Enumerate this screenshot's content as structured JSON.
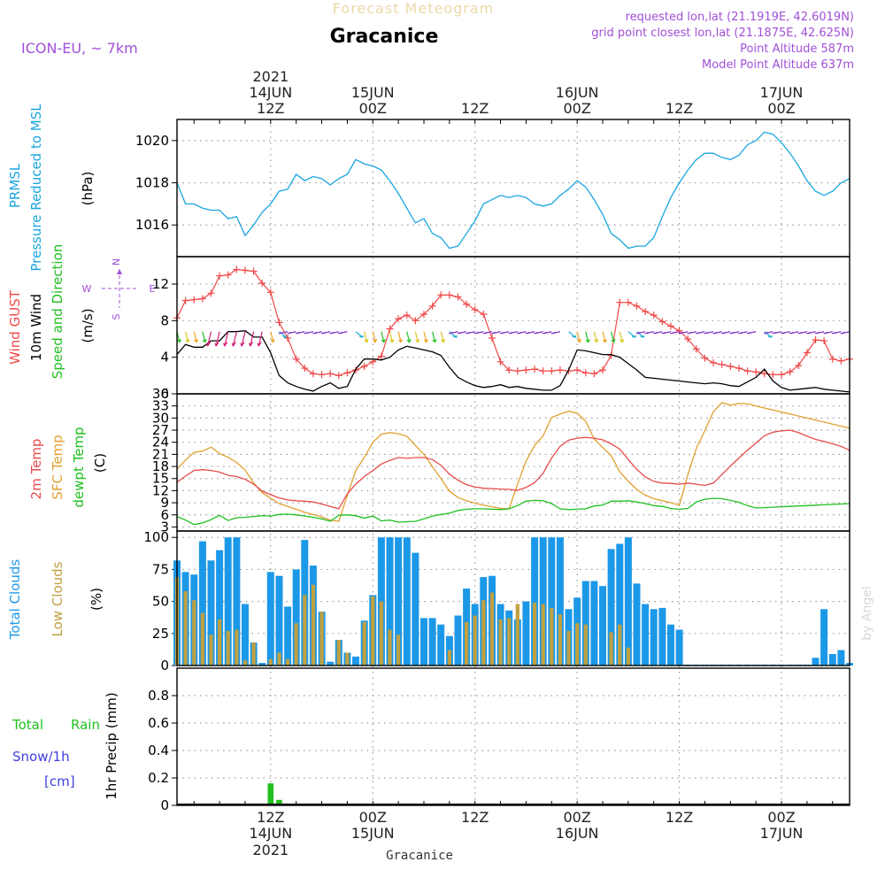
{
  "header": {
    "top_title": "Forecast Meteogram",
    "location": "Gracanice",
    "model": "ICON-EU, ~ 7km",
    "requested": "requested lon,lat (21.1919E, 42.6019N)",
    "gridpoint": "grid point closest lon,lat (21.1875E, 42.625N)",
    "point_alt": "Point Altitude 587m",
    "model_alt": "Model Point Altitude 637m",
    "watermark": "by Angel"
  },
  "time_axis": {
    "year": "2021",
    "top_labels": [
      {
        "t": 12,
        "line1": "14JUN",
        "line2": "12Z"
      },
      {
        "t": 24,
        "line1": "15JUN",
        "line2": "00Z"
      },
      {
        "t": 36,
        "line1": "",
        "line2": "12Z"
      },
      {
        "t": 48,
        "line1": "16JUN",
        "line2": "00Z"
      },
      {
        "t": 60,
        "line1": "",
        "line2": "12Z"
      },
      {
        "t": 72,
        "line1": "17JUN",
        "line2": "00Z"
      }
    ],
    "bottom_labels": [
      {
        "t": 12,
        "line1": "12Z",
        "line2": "14JUN"
      },
      {
        "t": 24,
        "line1": "00Z",
        "line2": "15JUN"
      },
      {
        "t": 36,
        "line1": "12Z",
        "line2": ""
      },
      {
        "t": 48,
        "line1": "00Z",
        "line2": "16JUN"
      },
      {
        "t": 60,
        "line1": "12Z",
        "line2": ""
      },
      {
        "t": 72,
        "line1": "00Z",
        "line2": "17JUN"
      }
    ],
    "bottom_year": "2021",
    "bottom_location": "Gracanice"
  },
  "panels": {
    "pressure": {
      "labels": [
        "PRMSL",
        "Pressure Reduced to MSL"
      ],
      "unit": "(hPa)"
    },
    "wind": {
      "labels": [
        "Wind GUST",
        "10m Wind",
        "Speed and Direction"
      ],
      "unit": "(m/s)",
      "compass": {
        "n": "N",
        "s": "S",
        "w": "W",
        "e": "E"
      }
    },
    "temp": {
      "labels": [
        "2m Temp",
        "SFC Temp",
        "dewpt Temp"
      ],
      "unit": "(C)"
    },
    "clouds": {
      "labels": [
        "Total Clouds",
        "Low Clouds"
      ],
      "unit": "(%)"
    },
    "precip": {
      "labels": [
        "Total",
        "Rain",
        "Snow/1h",
        "[cm]"
      ],
      "unit": "1hr Precip (mm)"
    }
  },
  "colors": {
    "pressure": "#19a6e0",
    "gust": "#f04848",
    "wind": "#000000",
    "t2m": "#e84a4a",
    "sfc": "#e0a030",
    "dew": "#20c020",
    "total_cloud": "#1c98e8",
    "low_cloud": "#c0a040",
    "rain": "#22c022",
    "snow": "#4040e0",
    "header_title": "#ead9a8",
    "purple": "#a050d8"
  },
  "chart_data": [
    {
      "type": "line",
      "name": "pressure",
      "xlabel": "",
      "ylabel": "(hPa)",
      "ylim": [
        1014.5,
        1021
      ],
      "yticks": [
        1016,
        1018,
        1020
      ],
      "x": [
        1,
        2,
        3,
        4,
        5,
        6,
        7,
        8,
        9,
        10,
        11,
        12,
        13,
        14,
        15,
        16,
        17,
        18,
        19,
        20,
        21,
        22,
        23,
        24,
        25,
        26,
        27,
        28,
        29,
        30,
        31,
        32,
        33,
        34,
        35,
        36,
        37,
        38,
        39,
        40,
        41,
        42,
        43,
        44,
        45,
        46,
        47,
        48,
        49,
        50,
        51,
        52,
        53,
        54,
        55,
        56,
        57,
        58,
        59,
        60,
        61,
        62,
        63,
        64,
        65,
        66,
        67,
        68,
        69,
        70,
        71,
        72,
        73,
        74,
        75,
        76,
        77,
        78,
        79,
        80
      ],
      "series": [
        {
          "values": [
            1018.0,
            1017.0,
            1017.0,
            1016.8,
            1016.7,
            1016.7,
            1016.3,
            1016.4,
            1015.5,
            1016.0,
            1016.6,
            1017.0,
            1017.6,
            1017.7,
            1018.4,
            1018.1,
            1018.3,
            1018.2,
            1017.9,
            1018.2,
            1018.4,
            1019.1,
            1018.9,
            1018.8,
            1018.6,
            1018.1,
            1017.5,
            1016.8,
            1016.1,
            1016.3,
            1015.6,
            1015.4,
            1014.9,
            1015.0,
            1015.6,
            1016.2,
            1017.0,
            1017.2,
            1017.4,
            1017.3,
            1017.4,
            1017.3,
            1017.0,
            1016.9,
            1017.0,
            1017.4,
            1017.7,
            1018.1,
            1017.8,
            1017.2,
            1016.5,
            1015.6,
            1015.3,
            1014.9,
            1015.0,
            1015.0,
            1015.4,
            1016.4,
            1017.3,
            1018.0,
            1018.6,
            1019.1,
            1019.4,
            1019.4,
            1019.2,
            1019.1,
            1019.3,
            1019.8,
            1020.0,
            1020.4,
            1020.3,
            1019.9,
            1019.4,
            1018.8,
            1018.1,
            1017.6,
            1017.4,
            1017.6,
            1018.0,
            1018.2
          ]
        }
      ]
    },
    {
      "type": "line",
      "name": "wind",
      "ylabel": "(m/s)",
      "ylim": [
        0,
        15
      ],
      "yticks": [
        0,
        4,
        8,
        12
      ],
      "x": [
        1,
        2,
        3,
        4,
        5,
        6,
        7,
        8,
        9,
        10,
        11,
        12,
        13,
        14,
        15,
        16,
        17,
        18,
        19,
        20,
        21,
        22,
        23,
        24,
        25,
        26,
        27,
        28,
        29,
        30,
        31,
        32,
        33,
        34,
        35,
        36,
        37,
        38,
        39,
        40,
        41,
        42,
        43,
        44,
        45,
        46,
        47,
        48,
        49,
        50,
        51,
        52,
        53,
        54,
        55,
        56,
        57,
        58,
        59,
        60,
        61,
        62,
        63,
        64,
        65,
        66,
        67,
        68,
        69,
        70,
        71,
        72,
        73,
        74,
        75,
        76,
        77,
        78,
        79,
        80
      ],
      "series": [
        {
          "name": "Wind GUST",
          "values": [
            8.3,
            10.2,
            10.3,
            10.4,
            11.0,
            12.9,
            13.0,
            13.6,
            13.5,
            13.4,
            12.1,
            11.1,
            7.8,
            6.1,
            3.8,
            2.8,
            2.2,
            2.1,
            2.2,
            2.0,
            2.3,
            2.6,
            3.0,
            3.5,
            4.1,
            7.1,
            8.2,
            8.6,
            8.0,
            8.7,
            9.6,
            10.8,
            10.8,
            10.6,
            9.8,
            9.2,
            8.7,
            6.1,
            3.5,
            2.6,
            2.5,
            2.6,
            2.7,
            2.5,
            2.5,
            2.6,
            2.5,
            2.6,
            2.3,
            2.2,
            2.6,
            4.2,
            10.0,
            10.0,
            9.6,
            9.0,
            8.6,
            7.9,
            7.4,
            6.9,
            6.0,
            4.9,
            3.9,
            3.4,
            3.2,
            3.0,
            2.8,
            2.5,
            2.4,
            2.2,
            2.1,
            2.1,
            2.4,
            3.1,
            4.5,
            5.9,
            5.8,
            3.8,
            3.6,
            3.8
          ]
        },
        {
          "name": "10m Wind",
          "values": [
            4.3,
            5.4,
            5.1,
            5.1,
            5.8,
            5.8,
            6.8,
            6.8,
            6.9,
            6.2,
            6.2,
            4.5,
            2.0,
            1.2,
            0.8,
            0.5,
            0.3,
            0.8,
            1.2,
            0.6,
            0.8,
            2.7,
            3.8,
            3.8,
            3.7,
            4.0,
            4.8,
            5.2,
            5.0,
            4.8,
            4.6,
            4.2,
            2.9,
            1.8,
            1.3,
            0.9,
            0.7,
            0.8,
            1.0,
            0.7,
            0.8,
            0.6,
            0.5,
            0.4,
            0.4,
            0.9,
            2.6,
            4.8,
            4.7,
            4.5,
            4.3,
            4.3,
            4.0,
            3.3,
            2.6,
            1.8,
            1.7,
            1.6,
            1.5,
            1.4,
            1.3,
            1.2,
            1.1,
            1.2,
            1.1,
            0.9,
            0.8,
            1.3,
            1.8,
            2.7,
            1.4,
            0.7,
            0.4,
            0.5,
            0.6,
            0.7,
            0.5,
            0.4,
            0.3,
            0.2
          ]
        }
      ]
    },
    {
      "type": "line",
      "name": "temperature",
      "ylabel": "(C)",
      "ylim": [
        2,
        36
      ],
      "yticks": [
        3,
        6,
        9,
        12,
        15,
        18,
        21,
        24,
        27,
        30,
        33,
        36
      ],
      "x": [
        1,
        2,
        3,
        4,
        5,
        6,
        7,
        8,
        9,
        10,
        11,
        12,
        13,
        14,
        15,
        16,
        17,
        18,
        19,
        20,
        21,
        22,
        23,
        24,
        25,
        26,
        27,
        28,
        29,
        30,
        31,
        32,
        33,
        34,
        35,
        36,
        37,
        38,
        39,
        40,
        41,
        42,
        43,
        44,
        45,
        46,
        47,
        48,
        49,
        50,
        51,
        52,
        53,
        54,
        55,
        56,
        57,
        58,
        59,
        60,
        61,
        62,
        63,
        64,
        65,
        66,
        67,
        68,
        69,
        70,
        71,
        72,
        73,
        74,
        75,
        76,
        77,
        78,
        79,
        80
      ],
      "series": [
        {
          "name": "2m Temp",
          "values": [
            14.1,
            15.6,
            17.0,
            17.2,
            17.0,
            16.6,
            15.8,
            15.5,
            14.8,
            13.6,
            11.9,
            11.0,
            10.2,
            9.7,
            9.5,
            9.4,
            9.2,
            8.7,
            8.1,
            7.5,
            11.2,
            13.6,
            15.5,
            17.0,
            18.6,
            19.5,
            20.2,
            20.0,
            20.2,
            20.2,
            19.7,
            18.3,
            16.1,
            14.6,
            13.5,
            12.9,
            12.6,
            12.5,
            12.4,
            12.3,
            12.1,
            12.8,
            14.0,
            16.3,
            20.1,
            23.0,
            24.5,
            25.0,
            25.2,
            25.0,
            24.6,
            23.6,
            22.3,
            19.7,
            17.3,
            15.4,
            14.3,
            13.9,
            13.8,
            13.6,
            13.9,
            13.6,
            13.3,
            13.9,
            16.0,
            18.1,
            20.1,
            22.0,
            23.8,
            25.6,
            26.5,
            26.8,
            27.0,
            26.4,
            25.5,
            24.7,
            24.2,
            23.6,
            23.0,
            22.0
          ]
        },
        {
          "name": "SFC Temp",
          "values": [
            17.3,
            19.6,
            21.5,
            21.8,
            22.8,
            21.2,
            20.3,
            19.0,
            17.1,
            13.9,
            11.5,
            10.1,
            8.8,
            8.1,
            7.4,
            6.6,
            6.1,
            5.5,
            4.7,
            4.4,
            10.8,
            17.0,
            20.2,
            24.0,
            26.0,
            26.4,
            26.1,
            25.5,
            23.2,
            21.0,
            18.0,
            15.0,
            11.9,
            10.3,
            9.5,
            8.9,
            8.4,
            8.0,
            7.6,
            7.5,
            13.6,
            19.3,
            23.2,
            25.6,
            30.1,
            31.0,
            31.7,
            31.2,
            29.2,
            24.8,
            22.7,
            20.7,
            16.7,
            14.3,
            12.3,
            10.9,
            10.0,
            9.5,
            9.0,
            8.4,
            15.9,
            22.5,
            26.9,
            31.6,
            33.8,
            33.2,
            33.6,
            33.5,
            33.0,
            32.5,
            32.0,
            31.5,
            31.0,
            30.5,
            30.0,
            29.5,
            29.0,
            28.5,
            28.0,
            27.5
          ]
        },
        {
          "name": "dewpt Temp",
          "values": [
            5.6,
            4.7,
            3.6,
            4.0,
            4.8,
            5.9,
            4.6,
            5.3,
            5.4,
            5.6,
            5.8,
            5.7,
            6.1,
            6.2,
            6.0,
            5.7,
            5.4,
            5.0,
            4.4,
            5.9,
            6.0,
            5.8,
            5.2,
            5.7,
            4.5,
            4.7,
            4.2,
            4.3,
            4.4,
            5.0,
            5.7,
            6.1,
            6.4,
            7.1,
            7.4,
            7.5,
            7.5,
            7.4,
            7.3,
            7.5,
            8.3,
            9.4,
            9.6,
            9.5,
            8.8,
            7.5,
            7.3,
            7.4,
            7.5,
            8.2,
            8.4,
            9.4,
            9.4,
            9.5,
            9.2,
            8.8,
            8.3,
            8.1,
            7.6,
            7.4,
            7.6,
            9.2,
            9.9,
            10.1,
            10.0,
            9.6,
            9.1,
            8.3,
            7.7,
            7.8,
            7.9,
            8.0,
            8.1,
            8.2,
            8.3,
            8.4,
            8.5,
            8.6,
            8.7,
            8.8
          ]
        }
      ]
    },
    {
      "type": "bar",
      "name": "clouds",
      "ylabel": "(%)",
      "ylim": [
        0,
        105
      ],
      "yticks": [
        0,
        25,
        50,
        75,
        100
      ],
      "x": [
        1,
        2,
        3,
        4,
        5,
        6,
        7,
        8,
        9,
        10,
        11,
        12,
        13,
        14,
        15,
        16,
        17,
        18,
        19,
        20,
        21,
        22,
        23,
        24,
        25,
        26,
        27,
        28,
        29,
        30,
        31,
        32,
        33,
        34,
        35,
        36,
        37,
        38,
        39,
        40,
        41,
        42,
        43,
        44,
        45,
        46,
        47,
        48,
        49,
        50,
        51,
        52,
        53,
        54,
        55,
        56,
        57,
        58,
        59,
        60,
        61,
        62,
        63,
        64,
        65,
        66,
        67,
        68,
        69,
        70,
        71,
        72,
        73,
        74,
        75,
        76,
        77,
        78,
        79,
        80
      ],
      "series": [
        {
          "name": "Total Clouds",
          "values": [
            82,
            73,
            71,
            97,
            82,
            90,
            100,
            100,
            48,
            18,
            2,
            73,
            70,
            46,
            75,
            98,
            78,
            42,
            3,
            20,
            10,
            7,
            35,
            55,
            100,
            100,
            100,
            100,
            88,
            37,
            37,
            32,
            23,
            39,
            60,
            48,
            69,
            70,
            48,
            43,
            36,
            50,
            100,
            100,
            100,
            100,
            44,
            53,
            66,
            66,
            62,
            91,
            95,
            100,
            64,
            48,
            44,
            45,
            32,
            28,
            0,
            0,
            0,
            0,
            0,
            0,
            0,
            0,
            0,
            0,
            0,
            0,
            0,
            0,
            0,
            6,
            44,
            9,
            12,
            2
          ]
        },
        {
          "name": "Low Clouds",
          "values": [
            69,
            58,
            51,
            41,
            24,
            36,
            27,
            28,
            4,
            18,
            0,
            5,
            10,
            5,
            33,
            55,
            63,
            42,
            0,
            20,
            10,
            0,
            34,
            54,
            50,
            28,
            24,
            0,
            0,
            0,
            0,
            0,
            12,
            0,
            34,
            39,
            51,
            57,
            36,
            37,
            48,
            0,
            49,
            48,
            45,
            40,
            27,
            33,
            32,
            0,
            0,
            26,
            32,
            14,
            0,
            0,
            0,
            0,
            0,
            0,
            0,
            0,
            0,
            0,
            0,
            0,
            0,
            0,
            0,
            0,
            0,
            0,
            0,
            0,
            0,
            0,
            0,
            0,
            0,
            0
          ]
        }
      ]
    },
    {
      "type": "bar",
      "name": "precip",
      "ylabel": "1hr Precip (mm)",
      "ylim": [
        0,
        1
      ],
      "yticks": [
        0,
        0.2,
        0.4,
        0.6,
        0.8
      ],
      "x": [
        12,
        13,
        15
      ],
      "series": [
        {
          "name": "Rain",
          "values": [
            0.16,
            0.04,
            0.01
          ]
        }
      ]
    }
  ]
}
